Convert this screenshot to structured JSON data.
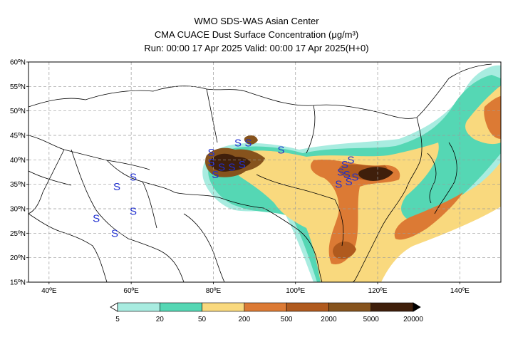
{
  "title": {
    "line1": "WMO SDS-WAS Asian Center",
    "line2": "CMA CUACE Dust Surface Concentration (μg/m³)",
    "line3": "Run: 00:00 17 Apr 2025    Valid: 00:00 17 Apr 2025(H+0)"
  },
  "map": {
    "lon_range": [
      35,
      150
    ],
    "lat_range": [
      15,
      60
    ],
    "lat_ticks": [
      {
        "value": 15,
        "label": "15ºN"
      },
      {
        "value": 20,
        "label": "20ºN"
      },
      {
        "value": 25,
        "label": "25ºN"
      },
      {
        "value": 30,
        "label": "30ºN"
      },
      {
        "value": 35,
        "label": "35ºN"
      },
      {
        "value": 40,
        "label": "40ºN"
      },
      {
        "value": 45,
        "label": "45ºN"
      },
      {
        "value": 50,
        "label": "50ºN"
      },
      {
        "value": 55,
        "label": "55ºN"
      },
      {
        "value": 60,
        "label": "60ºN"
      }
    ],
    "lon_ticks": [
      {
        "value": 40,
        "label": "40ºE"
      },
      {
        "value": 60,
        "label": "60ºE"
      },
      {
        "value": 80,
        "label": "80ºE"
      },
      {
        "value": 100,
        "label": "100ºE"
      },
      {
        "value": 120,
        "label": "120ºE"
      },
      {
        "value": 140,
        "label": "140ºE"
      }
    ],
    "station_marker": "S",
    "stations": [
      {
        "lon": 86.0,
        "lat": 43.5
      },
      {
        "lon": 88.5,
        "lat": 43.5
      },
      {
        "lon": 79.5,
        "lat": 41.5
      },
      {
        "lon": 82.0,
        "lat": 38.5
      },
      {
        "lon": 80.5,
        "lat": 37.0
      },
      {
        "lon": 84.5,
        "lat": 38.5
      },
      {
        "lon": 87.0,
        "lat": 39.0
      },
      {
        "lon": 79.5,
        "lat": 39.5
      },
      {
        "lon": 96.5,
        "lat": 42.0
      },
      {
        "lon": 111.0,
        "lat": 37.5
      },
      {
        "lon": 112.0,
        "lat": 39.0
      },
      {
        "lon": 113.5,
        "lat": 40.0
      },
      {
        "lon": 112.5,
        "lat": 37.0
      },
      {
        "lon": 110.5,
        "lat": 35.0
      },
      {
        "lon": 113.0,
        "lat": 35.5
      },
      {
        "lon": 114.5,
        "lat": 36.5
      },
      {
        "lon": 56.5,
        "lat": 34.5
      },
      {
        "lon": 60.5,
        "lat": 36.5
      },
      {
        "lon": 60.5,
        "lat": 29.5
      },
      {
        "lon": 51.5,
        "lat": 28.0
      },
      {
        "lon": 56.0,
        "lat": 25.0
      }
    ]
  },
  "colorbar": {
    "labels": [
      "5",
      "20",
      "50",
      "200",
      "500",
      "2000",
      "5000",
      "20000"
    ],
    "colors": [
      "#a8ece0",
      "#55d7b4",
      "#f9d97e",
      "#dc7a34",
      "#b05a1e",
      "#86531d",
      "#3f1f0b"
    ],
    "arrow_low_color": "#ffffff",
    "arrow_high_color": "#000000"
  }
}
